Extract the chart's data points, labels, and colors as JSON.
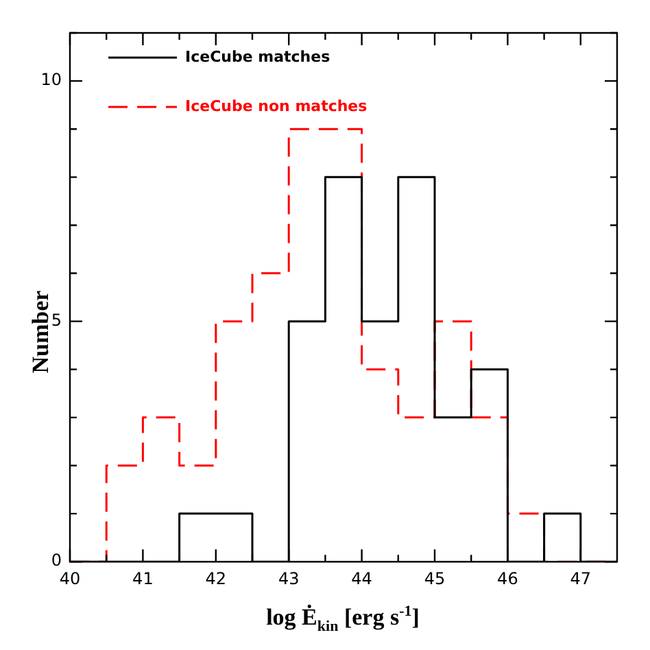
{
  "chart_data": {
    "type": "histogram",
    "xlabel": "log Ė$_{kin}$ [erg s$^{-1}$]",
    "ylabel": "Number",
    "bins": [
      40,
      40.5,
      41,
      41.5,
      42,
      42.5,
      43,
      43.5,
      44,
      44.5,
      45,
      45.5,
      46,
      46.5,
      47,
      47.5
    ],
    "series": [
      {
        "name": "IceCube matches",
        "color": "#000000",
        "line_style": "solid",
        "values": [
          0,
          0,
          0,
          1,
          1,
          0,
          5,
          8,
          5,
          8,
          3,
          4,
          0,
          1,
          0
        ]
      },
      {
        "name": "IceCube non matches",
        "color": "#ff0000",
        "line_style": "dashed",
        "values": [
          0,
          2,
          3,
          2,
          5,
          6,
          9,
          9,
          4,
          3,
          5,
          3,
          1,
          0,
          0
        ]
      }
    ],
    "xlim": [
      40,
      47.5
    ],
    "xticks": [
      40,
      {
        "value": 40.5,
        "label": null
      },
      41,
      {
        "value": 41.5,
        "label": null
      },
      42,
      {
        "value": 42.5,
        "label": null
      },
      43,
      {
        "value": 43.5,
        "label": null
      },
      44,
      {
        "value": 44.5,
        "label": null
      },
      45,
      {
        "value": 45.5,
        "label": null
      },
      46,
      {
        "value": 46.5,
        "label": null
      },
      47
    ],
    "ylim": [
      0,
      11
    ],
    "yticks": [
      0,
      {
        "value": 1,
        "label": null
      },
      {
        "value": 2,
        "label": null
      },
      {
        "value": 3,
        "label": null
      },
      {
        "value": 4,
        "label": null
      },
      5,
      {
        "value": 6,
        "label": null
      },
      {
        "value": 7,
        "label": null
      },
      {
        "value": 8,
        "label": null
      },
      {
        "value": 9,
        "label": null
      },
      10,
      {
        "value": 11,
        "label": null
      }
    ],
    "grid": false,
    "legend": "top left"
  }
}
